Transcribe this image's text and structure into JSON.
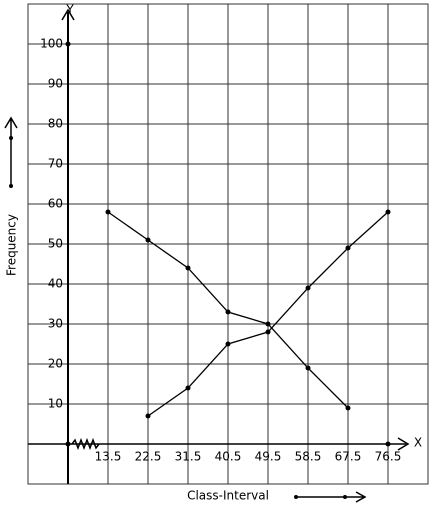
{
  "chart_data": {
    "type": "line",
    "x_label": "Class-Interval",
    "y_label": "Frequency",
    "x_axis_name": "X",
    "y_axis_name": "Y",
    "xlim": [
      -4.5,
      85.5
    ],
    "ylim": [
      -10,
      110
    ],
    "xticks": [
      13.5,
      22.5,
      31.5,
      40.5,
      49.5,
      58.5,
      67.5,
      76.5
    ],
    "yticks": [
      10,
      20,
      30,
      40,
      50,
      60,
      70,
      80,
      90,
      100
    ],
    "grid": true,
    "series": [
      {
        "color": "#000000",
        "x": [
          13.5,
          22.5,
          31.5,
          40.5,
          49.5,
          58.5,
          67.5
        ],
        "values": [
          58,
          51,
          44,
          33,
          30,
          19,
          9
        ]
      },
      {
        "color": "#000000",
        "x": [
          22.5,
          31.5,
          40.5,
          49.5,
          58.5,
          67.5,
          76.5
        ],
        "values": [
          7,
          14,
          25,
          28,
          39,
          49,
          58
        ]
      }
    ]
  }
}
